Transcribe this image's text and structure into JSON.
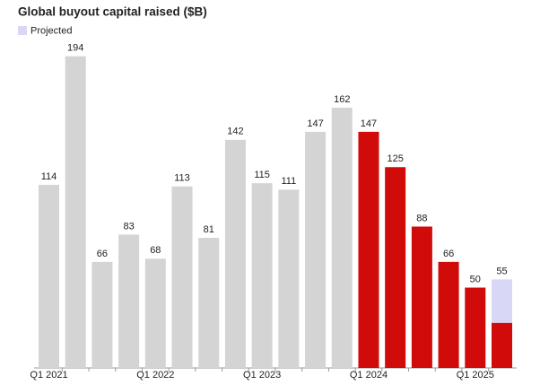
{
  "chart_data": {
    "type": "bar",
    "title": "Global buyout capital raised ($B)",
    "categories": [
      "Q1 2021",
      null,
      null,
      null,
      "Q1 2022",
      null,
      null,
      null,
      "Q1 2023",
      null,
      null,
      null,
      "Q1 2024",
      null,
      null,
      null,
      "Q1 2025",
      null
    ],
    "values": [
      114,
      194,
      66,
      83,
      68,
      113,
      81,
      142,
      115,
      111,
      147,
      162,
      147,
      125,
      88,
      66,
      50,
      55
    ],
    "colors": [
      "#d4d4d4",
      "#d4d4d4",
      "#d4d4d4",
      "#d4d4d4",
      "#d4d4d4",
      "#d4d4d4",
      "#d4d4d4",
      "#d4d4d4",
      "#d4d4d4",
      "#d4d4d4",
      "#d4d4d4",
      "#d4d4d4",
      "#d10a0a",
      "#d10a0a",
      "#d10a0a",
      "#d10a0a",
      "#d10a0a",
      "#d10a0a"
    ],
    "projected": {
      "name": "Projected",
      "color": "#d8d8f6",
      "values": [
        null,
        null,
        null,
        null,
        null,
        null,
        null,
        null,
        null,
        null,
        null,
        null,
        null,
        null,
        null,
        null,
        null,
        27
      ]
    },
    "ylim": [
      0,
      200
    ],
    "grid": false
  }
}
